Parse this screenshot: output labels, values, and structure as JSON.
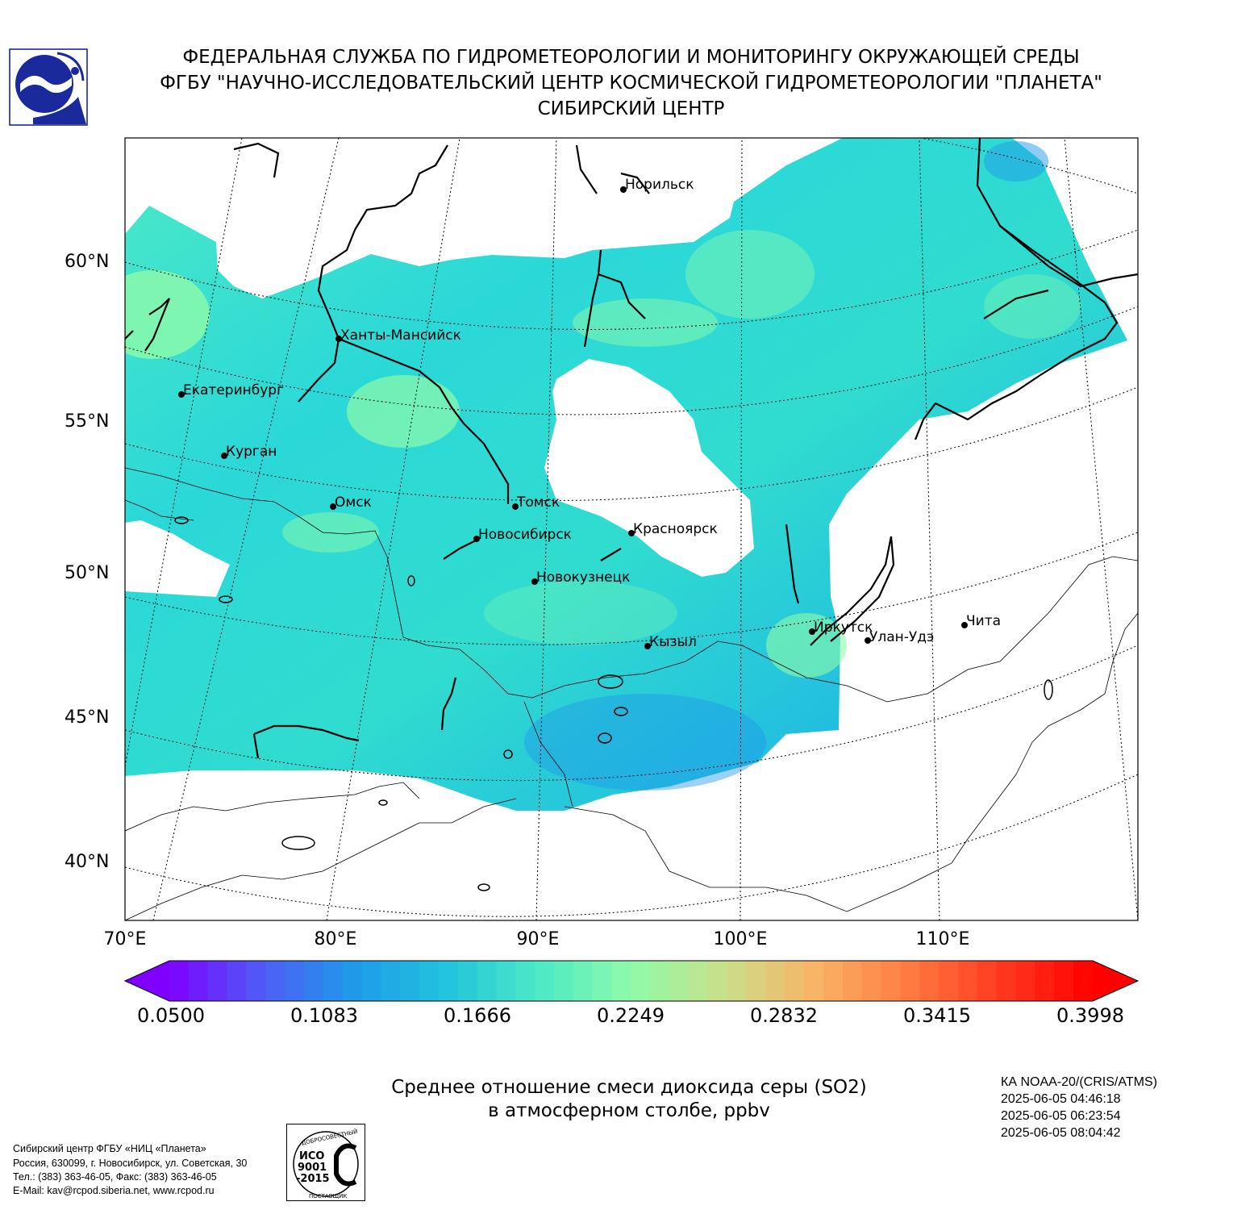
{
  "header": {
    "line1": "ФЕДЕРАЛЬНАЯ СЛУЖБА ПО ГИДРОМЕТЕОРОЛОГИИ И МОНИТОРИНГУ ОКРУЖАЮЩЕЙ СРЕДЫ",
    "line2": "ФГБУ \"НАУЧНО-ИССЛЕДОВАТЕЛЬСКИЙ ЦЕНТР КОСМИЧЕСКОЙ ГИДРОМЕТЕОРОЛОГИИ \"ПЛАНЕТА\"",
    "line3": "СИБИРСКИЙ ЦЕНТР"
  },
  "map": {
    "lat_labels": [
      "60°N",
      "55°N",
      "50°N",
      "45°N",
      "40°N"
    ],
    "lon_labels": [
      "70°E",
      "80°E",
      "90°E",
      "100°E",
      "110°E"
    ],
    "cities": [
      {
        "name": "Норильск"
      },
      {
        "name": "Ханты-Мансийск"
      },
      {
        "name": "Екатеринбург"
      },
      {
        "name": "Курган"
      },
      {
        "name": "Омск"
      },
      {
        "name": "Томск"
      },
      {
        "name": "Новосибирск"
      },
      {
        "name": "Красноярск"
      },
      {
        "name": "Новокузнецк"
      },
      {
        "name": "Кызыл"
      },
      {
        "name": "Иркутск"
      },
      {
        "name": "Улан-Удэ"
      },
      {
        "name": "Чита"
      }
    ]
  },
  "colorbar": {
    "min": 0.05,
    "max": 0.3998,
    "ticks": [
      "0.0500",
      "0.1083",
      "0.1666",
      "0.2249",
      "0.2832",
      "0.3415",
      "0.3998"
    ],
    "colors": [
      "#7f00ff",
      "#4f5cf8",
      "#1f9ae9",
      "#21c4dd",
      "#4ce9c6",
      "#8ffbaa",
      "#c9df8a",
      "#f9b466",
      "#ff7b41",
      "#ff3a1f",
      "#ff0000"
    ]
  },
  "caption": {
    "line1": "Среднее отношение смеси диоксида серы (SO2)",
    "line2": "в атмосферном столбе, ppbv"
  },
  "satellite": {
    "name": "КА NOAA-20/(CRIS/ATMS)",
    "times": [
      "2025-06-05 04:46:18",
      "2025-06-05 06:23:54",
      "2025-06-05 08:04:42"
    ]
  },
  "address": {
    "lines": [
      "Сибирский центр ФГБУ «НИЦ «Планета»",
      "Россия, 630099, г. Новосибирск, ул. Советская, 30",
      "Тел.: (383) 363-46-05, Факс: (383) 363-46-05",
      "E-Mail: kav@rcpod.siberia.net, www.rcpod.ru"
    ]
  },
  "iso_badge": {
    "arc_top": "ДОБРОСОВЕСТНЫЙ",
    "line1": "ИСО",
    "line2": "9001",
    "line3": "-2015",
    "arc_bottom": "ПОСТАВЩИК"
  }
}
